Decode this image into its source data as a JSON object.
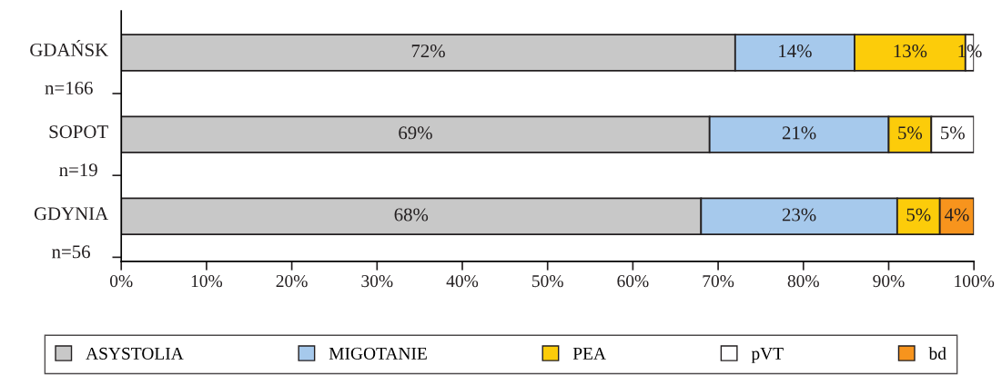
{
  "chart_data": {
    "type": "bar",
    "orientation": "horizontal",
    "stacked": true,
    "categories": [
      "GDAŃSK\nn=166",
      "SOPOT\nn=19",
      "GDYNIA\nn=56"
    ],
    "series": [
      {
        "name": "ASYSTOLIA",
        "color": "#c8c8c8",
        "values": [
          72,
          69,
          68
        ],
        "value_labels": [
          "72%",
          "69%",
          "68%"
        ]
      },
      {
        "name": "MIGOTANIE",
        "color": "#a6c9ec",
        "values": [
          14,
          21,
          23
        ],
        "value_labels": [
          "14%",
          "21%",
          "23%"
        ]
      },
      {
        "name": "PEA",
        "color": "#fccc0a",
        "values": [
          13,
          5,
          5
        ],
        "value_labels": [
          "13%",
          "5%",
          "5%"
        ]
      },
      {
        "name": "pVT",
        "color": "#ffffff",
        "values": [
          1,
          5,
          0
        ],
        "value_labels": [
          "1%",
          "5%",
          null
        ]
      },
      {
        "name": "bd",
        "color": "#f7941d",
        "values": [
          0,
          0,
          4
        ],
        "value_labels": [
          null,
          null,
          "4%"
        ]
      }
    ],
    "xlim": [
      0,
      100
    ],
    "xticks": [
      {
        "value": 0,
        "label": "0%"
      },
      {
        "value": 10,
        "label": "10%"
      },
      {
        "value": 20,
        "label": "20%"
      },
      {
        "value": 30,
        "label": "30%"
      },
      {
        "value": 40,
        "label": "40%"
      },
      {
        "value": 50,
        "label": "50%"
      },
      {
        "value": 60,
        "label": "60%"
      },
      {
        "value": 70,
        "label": "70%"
      },
      {
        "value": 80,
        "label": "80%"
      },
      {
        "value": 90,
        "label": "90%"
      },
      {
        "value": 100,
        "label": "100%"
      }
    ],
    "grid": false,
    "legend": "bottom"
  }
}
